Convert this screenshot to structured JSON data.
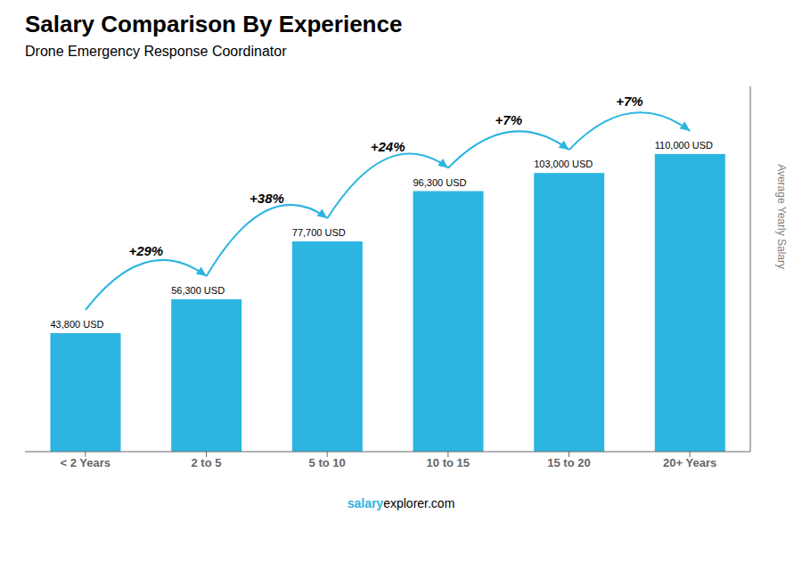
{
  "chart_data": {
    "type": "bar",
    "title": "Salary Comparison By Experience",
    "subtitle": "Drone Emergency Response Coordinator",
    "ylabel": "Average Yearly Salary",
    "categories": [
      "< 2 Years",
      "2 to 5",
      "5 to 10",
      "10 to 15",
      "15 to 20",
      "20+ Years"
    ],
    "values": [
      43800,
      56300,
      77700,
      96300,
      103000,
      110000
    ],
    "value_labels": [
      "43,800 USD",
      "56,300 USD",
      "77,700 USD",
      "96,300 USD",
      "103,000 USD",
      "110,000 USD"
    ],
    "data_labels": true,
    "pct_changes": [
      null,
      "+29%",
      "+38%",
      "+24%",
      "+7%",
      "+7%"
    ],
    "color": "#2cb5e0",
    "ylim": [
      0,
      135000
    ],
    "tick_labels": "x",
    "grid": false,
    "watermark": [
      "salary",
      "explorer.com"
    ]
  }
}
